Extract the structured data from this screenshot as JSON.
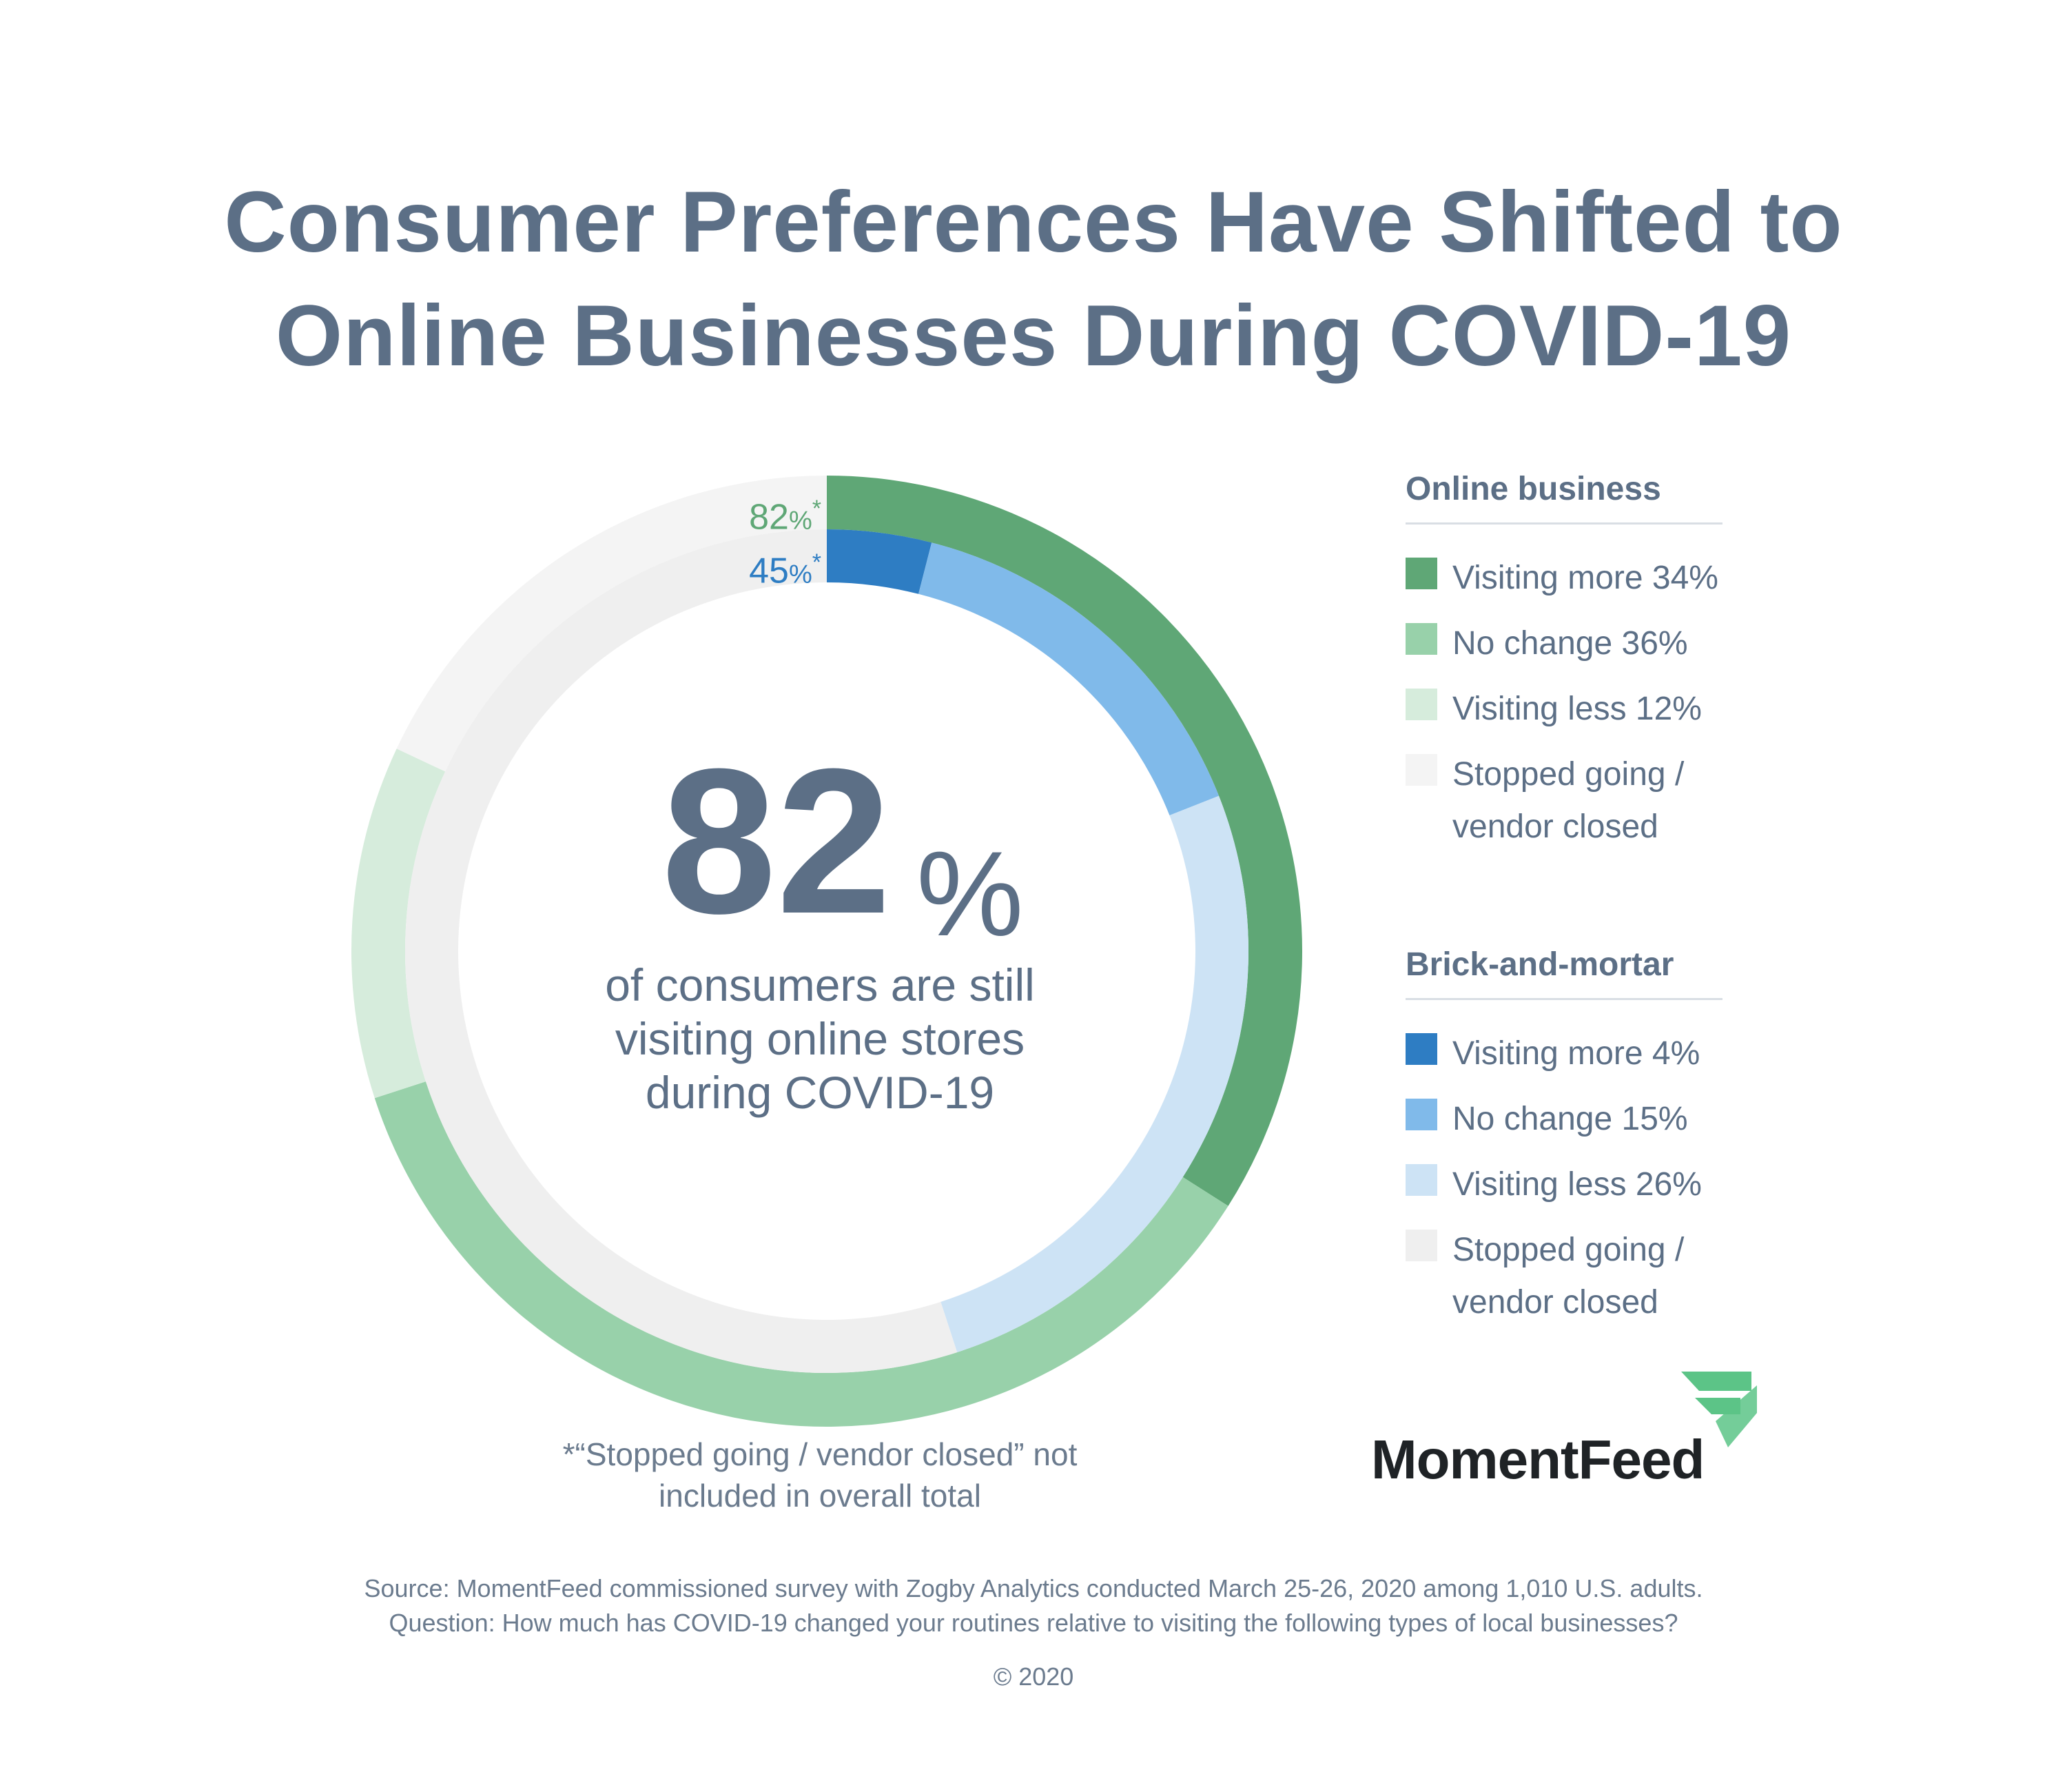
{
  "title": {
    "line1": "Consumer Preferences Have Shifted to",
    "line2": "Online Businesses During COVID-19"
  },
  "center": {
    "value": "82",
    "unit": "%",
    "caption_line1": "of consumers are still",
    "caption_line2": "visiting online stores",
    "caption_line3": "during COVID-19"
  },
  "callouts": {
    "online": {
      "value": "82",
      "unit": "%",
      "mark": "*"
    },
    "brick": {
      "value": "45",
      "unit": "%",
      "mark": "*"
    }
  },
  "chart_data": {
    "type": "pie",
    "variant": "nested-donut",
    "series": [
      {
        "name": "Online business",
        "ring": "outer",
        "labels": [
          "Visiting more",
          "No change",
          "Visiting less",
          "Stopped going / vendor closed"
        ],
        "values": [
          34,
          36,
          12,
          18
        ],
        "colors": [
          "#5fa776",
          "#98d1aa",
          "#d6ecdc",
          "#f4f4f4"
        ]
      },
      {
        "name": "Brick-and-mortar",
        "ring": "inner",
        "labels": [
          "Visiting more",
          "No change",
          "Visiting less",
          "Stopped going / vendor closed"
        ],
        "values": [
          4,
          15,
          26,
          55
        ],
        "colors": [
          "#2e7dc3",
          "#80baea",
          "#cde3f5",
          "#efefef"
        ]
      }
    ],
    "legend_position": "right"
  },
  "legend": {
    "online": {
      "title": "Online business",
      "items": [
        {
          "label": "Visiting more 34%",
          "color": "#5fa776"
        },
        {
          "label": "No change 36%",
          "color": "#98d1aa"
        },
        {
          "label": "Visiting less 12%",
          "color": "#d6ecdc"
        },
        {
          "label": "Stopped going / vendor closed",
          "color": "#f4f4f4"
        }
      ]
    },
    "brick": {
      "title": "Brick-and-mortar",
      "items": [
        {
          "label": "Visiting more 4%",
          "color": "#2e7dc3"
        },
        {
          "label": "No change 15%",
          "color": "#80baea"
        },
        {
          "label": "Visiting less 26%",
          "color": "#cde3f5"
        },
        {
          "label": "Stopped going / vendor closed",
          "color": "#efefef"
        }
      ]
    }
  },
  "footnote": {
    "line1": "*“Stopped going / vendor closed” not",
    "line2": "included in overall total"
  },
  "brand": {
    "name": "MomentFeed",
    "logo_icon": "momentfeed-flag-icon",
    "logo_color": "#5cc487"
  },
  "source": {
    "line1": "Source: MomentFeed commissioned survey with Zogby Analytics conducted March 25-26, 2020 among 1,010 U.S. adults.",
    "line2": "Question: How much has COVID-19 changed your routines relative to visiting the following types of local businesses?"
  },
  "copyright": "© 2020"
}
